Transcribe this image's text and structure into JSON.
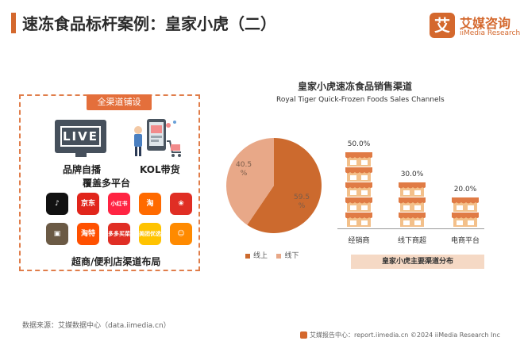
{
  "header": {
    "title": "速冻食品标杆案例：皇家小虎（二）"
  },
  "logo": {
    "mark": "艾",
    "name_cn": "艾媒咨询",
    "name_en": "iiMedia Research"
  },
  "panel": {
    "tag": "全渠道铺设",
    "live_text": "LIVE",
    "labels": {
      "live": "品牌自播",
      "kol": "KOL带货",
      "platforms": "覆盖多平台",
      "retail": "超商/便利店渠道布局"
    },
    "apps_row1": [
      {
        "name": "douyin",
        "text": "♪",
        "color": "#111111"
      },
      {
        "name": "jd",
        "text": "京东",
        "color": "#e1251b"
      },
      {
        "name": "xiaohongshu",
        "text": "小红书",
        "color": "#ff2442"
      },
      {
        "name": "taobao",
        "text": "淘",
        "color": "#ff6a00"
      },
      {
        "name": "pinduoduo",
        "text": "❀",
        "color": "#e02e24"
      }
    ],
    "apps_row2": [
      {
        "name": "app-a",
        "text": "▣",
        "color": "#6b5a45"
      },
      {
        "name": "taote",
        "text": "淘特",
        "color": "#ff5000"
      },
      {
        "name": "duoduo-maicai",
        "text": "多多买菜",
        "color": "#e02e24"
      },
      {
        "name": "meituan-youxuan",
        "text": "美团优选",
        "color": "#ffc300"
      },
      {
        "name": "app-b",
        "text": "☺",
        "color": "#ff8a00"
      }
    ]
  },
  "chart_data": [
    {
      "type": "pie",
      "title": "皇家小虎速冻食品销售渠道",
      "subtitle": "Royal Tiger Quick-Frozen Foods Sales Channels",
      "labels": [
        "线上",
        "线下"
      ],
      "values": [
        59.5,
        40.5
      ],
      "value_labels": [
        "59.5 %",
        "40.5 %"
      ],
      "colors": [
        "#cc6a2e",
        "#e8a888"
      ],
      "legend": "bottom"
    },
    {
      "type": "bar",
      "categories": [
        "经销商",
        "线下商超",
        "电商平台"
      ],
      "values": [
        50.0,
        30.0,
        20.0
      ],
      "value_labels": [
        "50.0%",
        "30.0%",
        "20.0%"
      ],
      "caption": "皇家小虎主要渠道分布",
      "unit_value": 10,
      "colors": {
        "awning": "#e07b45",
        "wall": "#f3c08a",
        "window": "#ffffff"
      }
    }
  ],
  "source": "数据来源：艾媒数据中心（data.iimedia.cn）",
  "footer": "艾媒报告中心：report.iimedia.cn    ©2024  iiMedia Research  Inc"
}
